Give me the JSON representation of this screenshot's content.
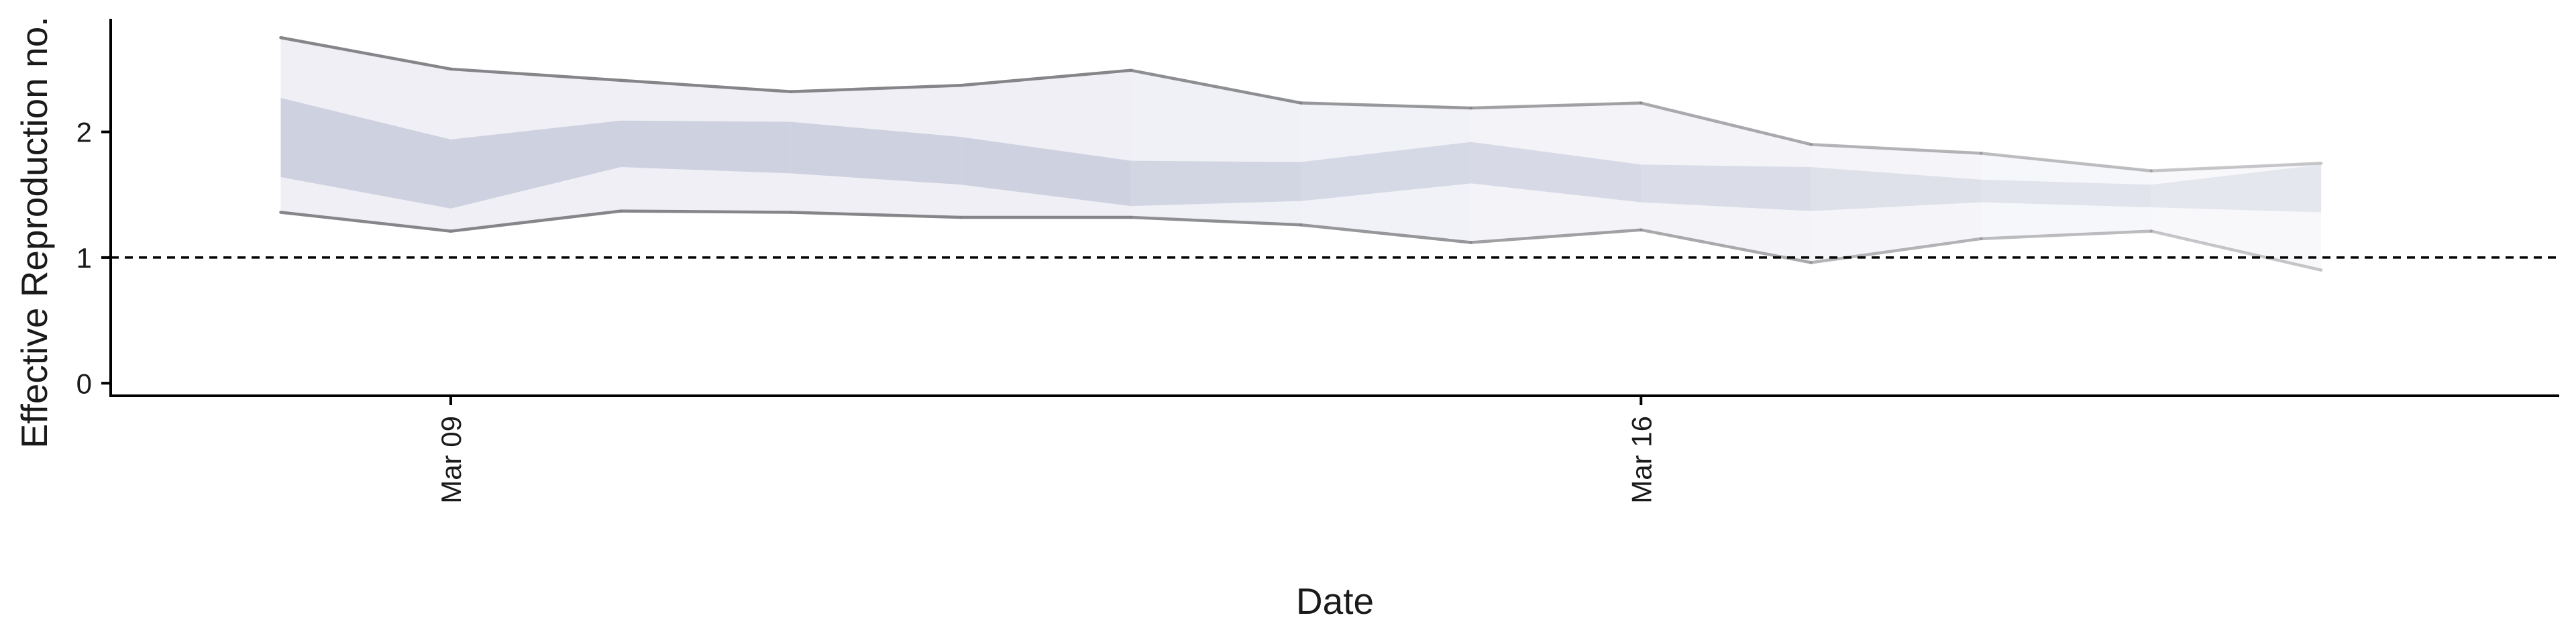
{
  "chart_data": {
    "type": "area",
    "xlabel": "Date",
    "ylabel": "Effective Reproduction no.",
    "x": [
      "2020-03-08",
      "2020-03-09",
      "2020-03-10",
      "2020-03-11",
      "2020-03-12",
      "2020-03-13",
      "2020-03-14",
      "2020-03-15",
      "2020-03-16",
      "2020-03-17",
      "2020-03-18",
      "2020-03-19",
      "2020-03-20"
    ],
    "xticks": [
      {
        "label": "Mar 09",
        "value": "2020-03-09"
      },
      {
        "label": "Mar 16",
        "value": "2020-03-16"
      }
    ],
    "yticks": [
      0,
      1,
      2
    ],
    "ylim": [
      -0.1,
      2.9
    ],
    "reference_line": {
      "y": 1,
      "style": "dashed"
    },
    "bands": {
      "outer_upper": [
        2.75,
        2.5,
        2.41,
        2.32,
        2.37,
        2.49,
        2.23,
        2.19,
        2.23,
        1.9,
        1.83,
        1.69,
        1.75
      ],
      "inner_upper": [
        2.27,
        1.94,
        2.09,
        2.08,
        1.96,
        1.77,
        1.76,
        1.92,
        1.74,
        1.72,
        1.62,
        1.58,
        1.74
      ],
      "inner_lower": [
        1.64,
        1.39,
        1.72,
        1.67,
        1.58,
        1.41,
        1.45,
        1.59,
        1.44,
        1.37,
        1.44,
        1.4,
        1.36
      ],
      "outer_lower": [
        1.36,
        1.21,
        1.37,
        1.36,
        1.32,
        1.32,
        1.26,
        1.12,
        1.22,
        0.96,
        1.15,
        1.21,
        0.9
      ]
    },
    "colors": {
      "outer_band": "#e6e7f0",
      "inner_band": "#c6cbdb",
      "bound_line": "#7f7f84",
      "axis": "#000000"
    },
    "grid": false,
    "legend": "none"
  }
}
